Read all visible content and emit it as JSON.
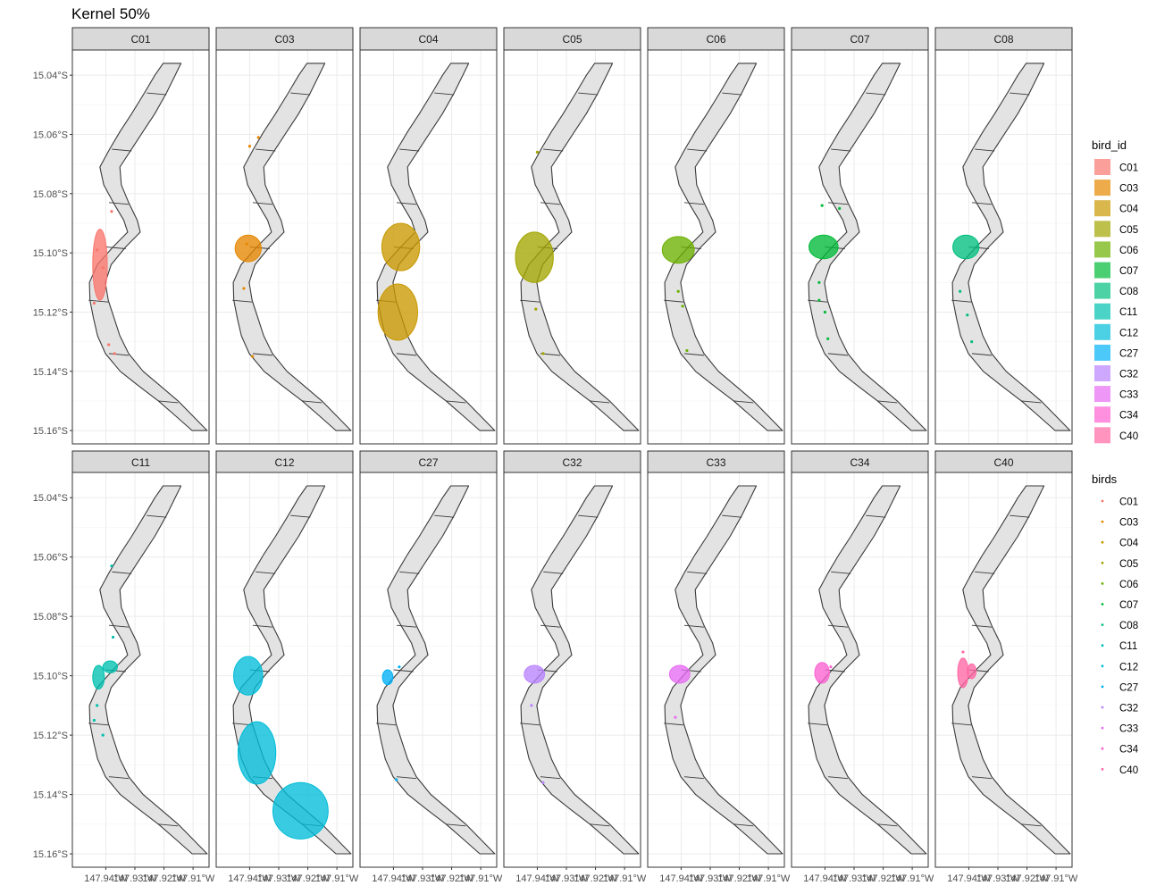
{
  "chart_data": {
    "type": "map",
    "title": "Kernel 50%",
    "facet_layout": {
      "rows": 2,
      "cols": 7
    },
    "x_ticks": [
      "147.94°W",
      "147.93°W",
      "147.92°W",
      "147.91°W"
    ],
    "x_tick_values": [
      -147.94,
      -147.93,
      -147.92,
      -147.91
    ],
    "y_ticks": [
      "15.04°S",
      "15.06°S",
      "15.08°S",
      "15.10°S",
      "15.12°S",
      "15.14°S",
      "15.16°S"
    ],
    "y_tick_values": [
      -15.04,
      -15.06,
      -15.08,
      -15.1,
      -15.12,
      -15.14,
      -15.16
    ],
    "xlim": [
      -147.9515,
      -147.9045
    ],
    "ylim": [
      -15.1645,
      -15.0315
    ],
    "grid": true,
    "legend_placement": "right",
    "colors": {
      "C01": "#F8766D",
      "C03": "#E58700",
      "C04": "#C99800",
      "C05": "#A3A500",
      "C06": "#6BB100",
      "C07": "#00BA38",
      "C08": "#00BF7D",
      "C11": "#00C0AF",
      "C12": "#00BCD8",
      "C27": "#00B0F6",
      "C32": "#B983FF",
      "C33": "#E76BF3",
      "C34": "#FD61D1",
      "C40": "#FF67A4"
    },
    "coastline": [
      [
        -147.916,
        -15.036
      ],
      [
        -147.918,
        -15.04
      ],
      [
        -147.921,
        -15.046
      ],
      [
        -147.925,
        -15.053
      ],
      [
        -147.929,
        -15.059
      ],
      [
        -147.933,
        -15.065
      ],
      [
        -147.937,
        -15.071
      ],
      [
        -147.9365,
        -15.077
      ],
      [
        -147.934,
        -15.083
      ],
      [
        -147.931,
        -15.089
      ],
      [
        -147.93,
        -15.093
      ],
      [
        -147.935,
        -15.098
      ],
      [
        -147.94,
        -15.104
      ],
      [
        -147.942,
        -15.11
      ],
      [
        -147.941,
        -15.116
      ],
      [
        -147.939,
        -15.122
      ],
      [
        -147.937,
        -15.128
      ],
      [
        -147.934,
        -15.134
      ],
      [
        -147.929,
        -15.14
      ],
      [
        -147.923,
        -15.145
      ],
      [
        -147.917,
        -15.15
      ],
      [
        -147.912,
        -15.155
      ],
      [
        -147.907,
        -15.16
      ]
    ],
    "legends": [
      {
        "title": "bird_id",
        "kind": "fill",
        "items": [
          "C01",
          "C03",
          "C04",
          "C05",
          "C06",
          "C07",
          "C08",
          "C11",
          "C12",
          "C27",
          "C32",
          "C33",
          "C34",
          "C40"
        ]
      },
      {
        "title": "birds",
        "kind": "point",
        "items": [
          "C01",
          "C03",
          "C04",
          "C05",
          "C06",
          "C07",
          "C08",
          "C11",
          "C12",
          "C27",
          "C32",
          "C33",
          "C34",
          "C40"
        ]
      }
    ],
    "facets": [
      {
        "label": "C01",
        "kernels": [
          {
            "x": -147.942,
            "y": -15.104,
            "rx": 0.0025,
            "ry": 0.012
          }
        ],
        "points": [
          [
            -147.938,
            -15.086
          ],
          [
            -147.943,
            -15.099
          ],
          [
            -147.941,
            -15.105
          ],
          [
            -147.944,
            -15.117
          ],
          [
            -147.939,
            -15.131
          ],
          [
            -147.937,
            -15.134
          ]
        ]
      },
      {
        "label": "C03",
        "kernels": [
          {
            "x": -147.9405,
            "y": -15.0985,
            "rx": 0.0045,
            "ry": 0.0045
          }
        ],
        "points": [
          [
            -147.937,
            -15.061
          ],
          [
            -147.94,
            -15.064
          ],
          [
            -147.941,
            -15.097
          ],
          [
            -147.942,
            -15.112
          ],
          [
            -147.939,
            -15.135
          ]
        ]
      },
      {
        "label": "C04",
        "kernels": [
          {
            "x": -147.9375,
            "y": -15.098,
            "rx": 0.0065,
            "ry": 0.008
          },
          {
            "x": -147.9385,
            "y": -15.12,
            "rx": 0.0068,
            "ry": 0.0095
          }
        ],
        "points": []
      },
      {
        "label": "C05",
        "kernels": [
          {
            "x": -147.941,
            "y": -15.1015,
            "rx": 0.0065,
            "ry": 0.0085
          }
        ],
        "points": [
          [
            -147.94,
            -15.066
          ],
          [
            -147.9405,
            -15.119
          ],
          [
            -147.938,
            -15.134
          ]
        ]
      },
      {
        "label": "C06",
        "kernels": [
          {
            "x": -147.941,
            "y": -15.099,
            "rx": 0.0055,
            "ry": 0.0045
          }
        ],
        "points": [
          [
            -147.941,
            -15.113
          ],
          [
            -147.9395,
            -15.118
          ],
          [
            -147.938,
            -15.133
          ]
        ]
      },
      {
        "label": "C07",
        "kernels": [
          {
            "x": -147.9405,
            "y": -15.098,
            "rx": 0.005,
            "ry": 0.004
          }
        ],
        "points": [
          [
            -147.941,
            -15.084
          ],
          [
            -147.935,
            -15.085
          ],
          [
            -147.942,
            -15.11
          ],
          [
            -147.942,
            -15.116
          ],
          [
            -147.94,
            -15.12
          ],
          [
            -147.939,
            -15.129
          ]
        ]
      },
      {
        "label": "C08",
        "kernels": [
          {
            "x": -147.941,
            "y": -15.098,
            "rx": 0.0045,
            "ry": 0.004
          }
        ],
        "points": [
          [
            -147.943,
            -15.113
          ],
          [
            -147.9405,
            -15.121
          ],
          [
            -147.939,
            -15.13
          ]
        ]
      },
      {
        "label": "C11",
        "kernels": [
          {
            "x": -147.9425,
            "y": -15.1005,
            "rx": 0.002,
            "ry": 0.004
          },
          {
            "x": -147.9385,
            "y": -15.097,
            "rx": 0.0025,
            "ry": 0.002
          }
        ],
        "points": [
          [
            -147.938,
            -15.063
          ],
          [
            -147.9375,
            -15.087
          ],
          [
            -147.943,
            -15.11
          ],
          [
            -147.944,
            -15.115
          ],
          [
            -147.941,
            -15.12
          ]
        ]
      },
      {
        "label": "C12",
        "kernels": [
          {
            "x": -147.9405,
            "y": -15.1,
            "rx": 0.005,
            "ry": 0.0065
          },
          {
            "x": -147.9375,
            "y": -15.126,
            "rx": 0.0065,
            "ry": 0.0105
          },
          {
            "x": -147.9225,
            "y": -15.1455,
            "rx": 0.0095,
            "ry": 0.0095
          }
        ],
        "points": []
      },
      {
        "label": "C27",
        "kernels": [
          {
            "x": -147.942,
            "y": -15.1005,
            "rx": 0.0018,
            "ry": 0.0025
          }
        ],
        "points": [
          [
            -147.938,
            -15.097
          ],
          [
            -147.939,
            -15.135
          ]
        ]
      },
      {
        "label": "C32",
        "kernels": [
          {
            "x": -147.941,
            "y": -15.0995,
            "rx": 0.0035,
            "ry": 0.003
          }
        ],
        "points": [
          [
            -147.942,
            -15.11
          ],
          [
            -147.938,
            -15.136
          ]
        ]
      },
      {
        "label": "C33",
        "kernels": [
          {
            "x": -147.9405,
            "y": -15.0995,
            "rx": 0.0035,
            "ry": 0.003
          }
        ],
        "points": [
          [
            -147.942,
            -15.114
          ]
        ]
      },
      {
        "label": "C34",
        "kernels": [
          {
            "x": -147.941,
            "y": -15.099,
            "rx": 0.0025,
            "ry": 0.0035
          }
        ],
        "points": [
          [
            -147.938,
            -15.097
          ],
          [
            -147.942,
            -15.102
          ]
        ]
      },
      {
        "label": "C40",
        "kernels": [
          {
            "x": -147.942,
            "y": -15.099,
            "rx": 0.0018,
            "ry": 0.005
          },
          {
            "x": -147.939,
            "y": -15.0985,
            "rx": 0.0015,
            "ry": 0.0025
          }
        ],
        "points": [
          [
            -147.942,
            -15.092
          ],
          [
            -147.941,
            -15.102
          ]
        ]
      }
    ]
  }
}
